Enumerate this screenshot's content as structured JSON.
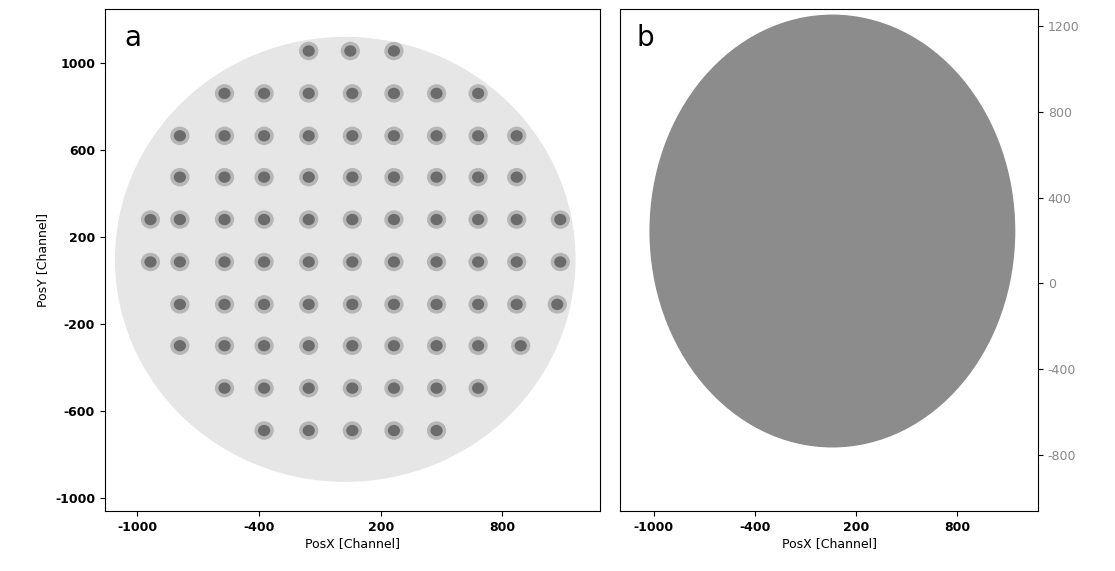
{
  "chart_data": [
    {
      "type": "image",
      "panel_label": "a",
      "x_label": "PosX [Channel]",
      "y_label": "PosY [Channel]",
      "xlim": [
        -1160,
        1280
      ],
      "ylim": [
        -1060,
        1250
      ],
      "xticks": [
        -1000,
        -400,
        200,
        800
      ],
      "yticks": [
        -1000,
        -600,
        -200,
        200,
        600,
        1000
      ],
      "disk": {
        "center": [
          25,
          97
        ],
        "radii": [
          1135,
          1023
        ],
        "color": "#e6e6e6"
      },
      "spots": {
        "color": "#5e5e5e",
        "rows": [
          {
            "y": 1055,
            "x": [
              -155,
              50,
              265
            ]
          },
          {
            "y": 860,
            "x": [
              -570,
              -375,
              -155,
              60,
              265,
              475,
              680
            ]
          },
          {
            "y": 665,
            "x": [
              -790,
              -570,
              -375,
              -155,
              60,
              265,
              475,
              680,
              870
            ]
          },
          {
            "y": 475,
            "x": [
              -790,
              -570,
              -375,
              -155,
              60,
              265,
              475,
              680,
              870
            ]
          },
          {
            "y": 280,
            "x": [
              -935,
              -790,
              -570,
              -375,
              -155,
              60,
              265,
              475,
              680,
              870,
              1085
            ]
          },
          {
            "y": 85,
            "x": [
              -935,
              -790,
              -570,
              -375,
              -155,
              60,
              265,
              475,
              680,
              870,
              1085
            ]
          },
          {
            "y": -110,
            "x": [
              -790,
              -570,
              -375,
              -155,
              60,
              265,
              475,
              680,
              870,
              1070
            ]
          },
          {
            "y": -300,
            "x": [
              -790,
              -570,
              -375,
              -155,
              60,
              265,
              475,
              680,
              890
            ]
          },
          {
            "y": -495,
            "x": [
              -570,
              -375,
              -155,
              60,
              265,
              475,
              680
            ]
          },
          {
            "y": -690,
            "x": [
              -375,
              -155,
              60,
              265,
              475
            ]
          }
        ]
      }
    },
    {
      "type": "image",
      "panel_label": "b",
      "x_label": "PosX [Channel]",
      "xlim": [
        -1200,
        1280
      ],
      "ylim": [
        -1060,
        1280
      ],
      "xticks": [
        -1000,
        -400,
        200,
        800
      ],
      "yticks": [
        -800,
        -400,
        0,
        400,
        800,
        1200
      ],
      "disk": {
        "center": [
          60,
          244
        ],
        "radii": [
          1085,
          1008
        ],
        "color": "#8c8c8c"
      }
    }
  ]
}
